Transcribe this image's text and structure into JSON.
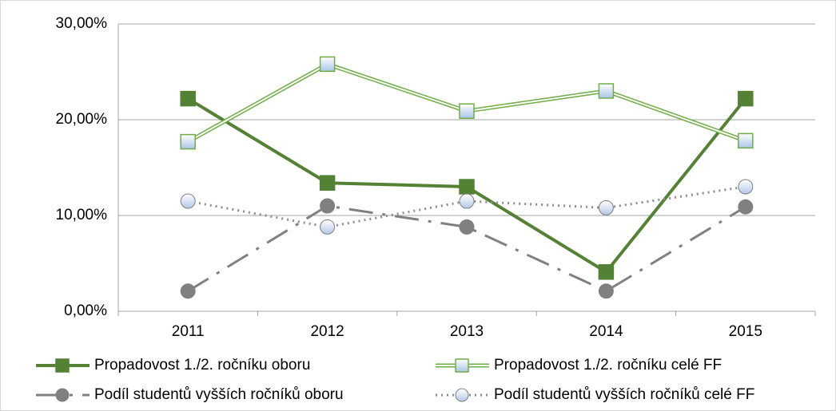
{
  "chart_data": {
    "type": "line",
    "categories": [
      "2011",
      "2012",
      "2013",
      "2014",
      "2015"
    ],
    "series": [
      {
        "name": "Propadovost 1./2. ročníku oboru",
        "color": "#548235",
        "values": [
          22.2,
          13.4,
          13.0,
          4.1,
          22.2
        ]
      },
      {
        "name": "Propadovost 1./2. ročníku celé FF",
        "color": "#70ad47",
        "values": [
          17.7,
          25.8,
          20.9,
          23.0,
          17.8
        ]
      },
      {
        "name": "Podíl studentů vyšších ročníků oboru",
        "color": "#808080",
        "values": [
          2.1,
          11.0,
          8.8,
          2.1,
          10.9
        ]
      },
      {
        "name": "Podíl studentů vyšších ročníků celé FF",
        "color": "#8c8c8c",
        "values": [
          11.5,
          8.8,
          11.5,
          10.8,
          13.0
        ]
      }
    ],
    "ylim": [
      0,
      30
    ],
    "yticks": [
      {
        "value": 0,
        "label": "0,00%"
      },
      {
        "value": 10,
        "label": "10,00%"
      },
      {
        "value": 20,
        "label": "20,00%"
      },
      {
        "value": 30,
        "label": "30,00%"
      }
    ],
    "grid": true
  }
}
